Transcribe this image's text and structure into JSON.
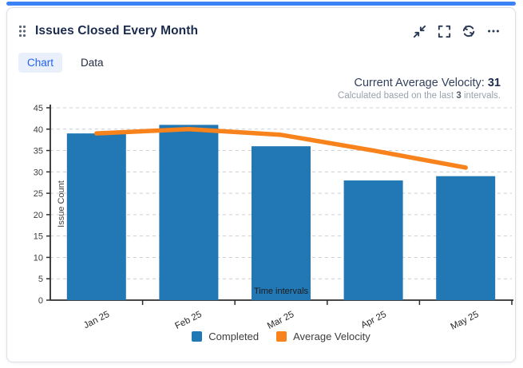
{
  "widget": {
    "title": "Issues Closed Every Month",
    "tabs": [
      {
        "label": "Chart",
        "active": true
      },
      {
        "label": "Data",
        "active": false
      }
    ],
    "header_icons": [
      "drag-handle-icon",
      "collapse-icon",
      "fullscreen-icon",
      "refresh-icon",
      "ellipsis-icon"
    ],
    "velocity": {
      "label": "Current Average Velocity: ",
      "value": "31",
      "note_prefix": "Calculated based on the last ",
      "note_bold": "3",
      "note_suffix": " intervals."
    }
  },
  "chart_data": {
    "type": "bar",
    "categories": [
      "Jan 25",
      "Feb 25",
      "Mar 25",
      "Apr 25",
      "May 25"
    ],
    "series": [
      {
        "name": "Completed",
        "type": "bar",
        "color": "#2278b5",
        "values": [
          39,
          41,
          36,
          28,
          29
        ]
      },
      {
        "name": "Average Velocity",
        "type": "line",
        "color": "#f8821c",
        "values": [
          39,
          40,
          38.67,
          35,
          31
        ]
      }
    ],
    "title": "",
    "xlabel": "Time intervals",
    "ylabel": "Issue Count",
    "ylim": [
      0,
      45
    ],
    "ytick_step": 5,
    "grid": "dashed horizontal",
    "legend_position": "bottom"
  },
  "colors": {
    "drop_indicator": "#3b82f6",
    "tab_active_text": "#2563eb",
    "tab_active_bg": "#e9f0fc",
    "bar": "#2278b5",
    "line": "#f8821c",
    "axis": "#2e2e2e",
    "gridline": "#c9cdd4",
    "title_text": "#1b2b4d",
    "icon": "#2b3a55"
  }
}
